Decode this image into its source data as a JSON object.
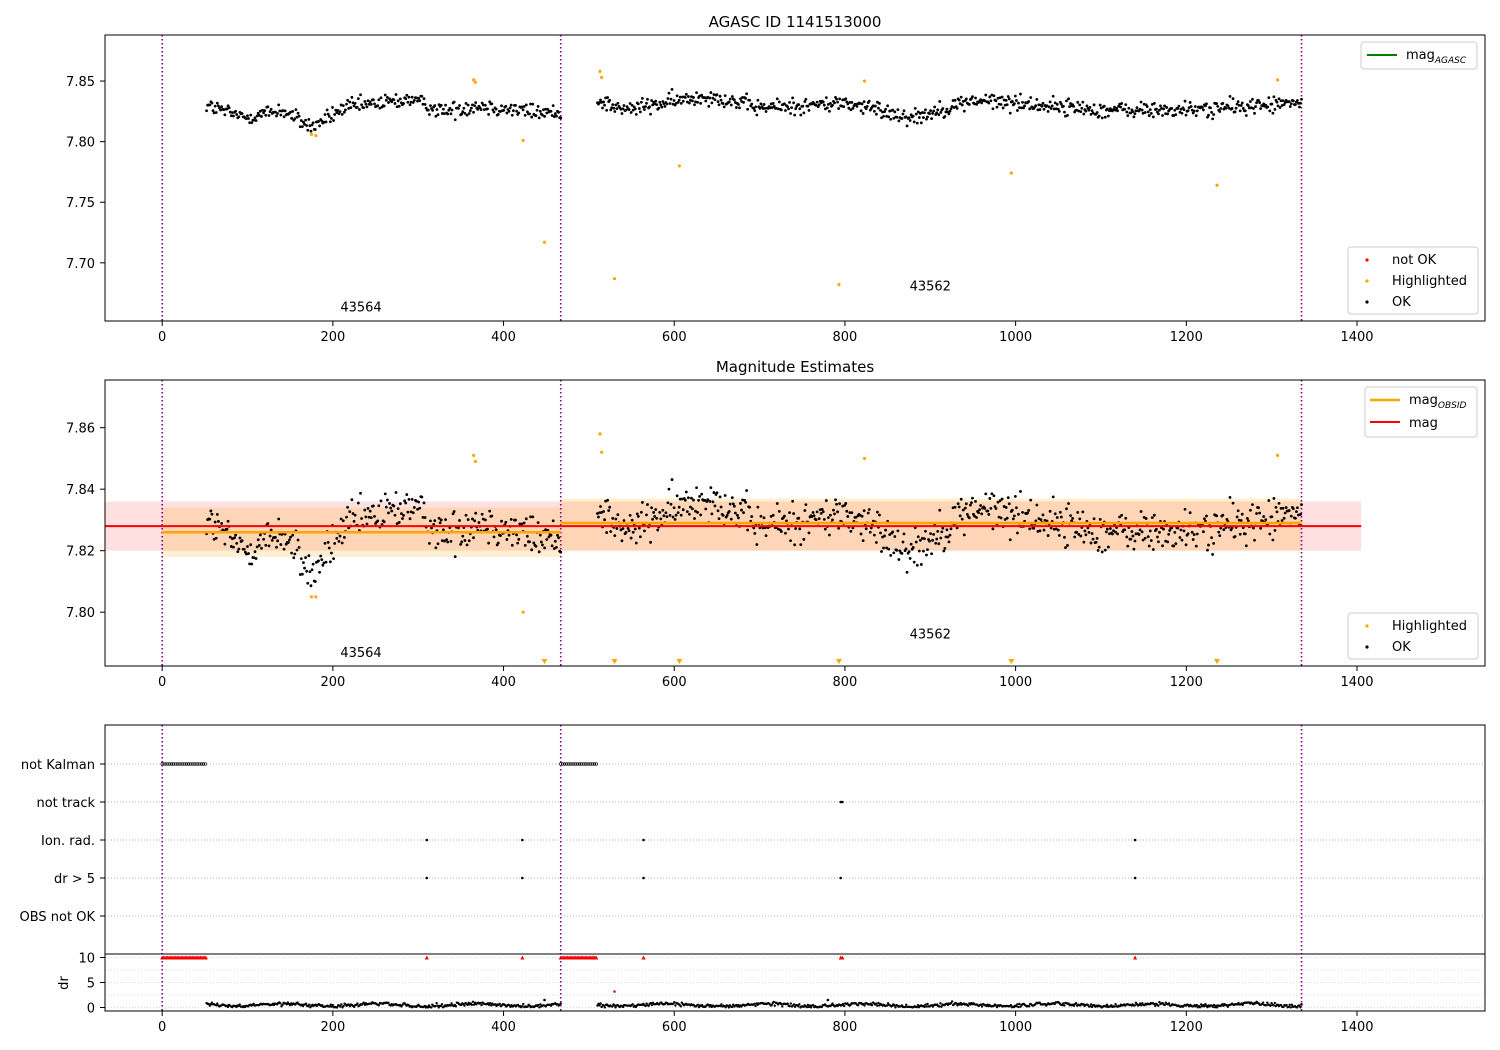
{
  "chart_data": [
    {
      "type": "scatter",
      "title": "AGASC ID 1141513000",
      "xlim": [
        -67,
        1550
      ],
      "ylim": [
        7.652,
        7.888
      ],
      "xticks": [
        "0",
        "200",
        "400",
        "600",
        "800",
        "1000",
        "1200",
        "1400"
      ],
      "yticks": [
        "7.70",
        "7.75",
        "7.80",
        "7.85"
      ],
      "legend_upper": {
        "label": "mag",
        "subscript": "AGASC",
        "color": "#008000"
      },
      "legend_lower": [
        {
          "label": "not OK",
          "color": "#ff0000"
        },
        {
          "label": "Highlighted",
          "color": "#ffa500"
        },
        {
          "label": "OK",
          "color": "#000000"
        }
      ],
      "obsid_labels": [
        {
          "text": "43564",
          "x": 233,
          "y": 7.66
        },
        {
          "text": "43562",
          "x": 900,
          "y": 7.677
        }
      ],
      "obsid_boundaries": [
        0,
        467,
        1335
      ],
      "highlighted": [
        [
          175,
          7.806
        ],
        [
          180,
          7.805
        ],
        [
          365,
          7.851
        ],
        [
          367,
          7.849
        ],
        [
          423,
          7.801
        ],
        [
          448,
          7.717
        ],
        [
          513,
          7.858
        ],
        [
          515,
          7.853
        ],
        [
          530,
          7.687
        ],
        [
          606,
          7.78
        ],
        [
          793,
          7.682
        ],
        [
          823,
          7.85
        ],
        [
          995,
          7.774
        ],
        [
          1236,
          7.764
        ],
        [
          1307,
          7.851
        ]
      ],
      "ok_segments": [
        {
          "x0": 52,
          "x1": 467,
          "n": 330,
          "base": [
            [
              52,
              7.83
            ],
            [
              95,
              7.82
            ],
            [
              140,
              7.826
            ],
            [
              175,
              7.812
            ],
            [
              215,
              7.828
            ],
            [
              290,
              7.835
            ],
            [
              330,
              7.825
            ],
            [
              370,
              7.83
            ],
            [
              430,
              7.825
            ],
            [
              467,
              7.823
            ]
          ],
          "spread": 0.0055
        },
        {
          "x0": 510,
          "x1": 1335,
          "n": 690,
          "base": [
            [
              510,
              7.835
            ],
            [
              540,
              7.826
            ],
            [
              640,
              7.838
            ],
            [
              700,
              7.828
            ],
            [
              760,
              7.83
            ],
            [
              800,
              7.832
            ],
            [
              880,
              7.82
            ],
            [
              950,
              7.834
            ],
            [
              1000,
              7.832
            ],
            [
              1100,
              7.826
            ],
            [
              1200,
              7.826
            ],
            [
              1290,
              7.83
            ],
            [
              1335,
              7.832
            ]
          ],
          "spread": 0.0055
        }
      ]
    },
    {
      "type": "scatter",
      "title": "Magnitude Estimates",
      "xlim": [
        -67,
        1550
      ],
      "ylim": [
        7.7825,
        7.8755
      ],
      "xticks": [
        "0",
        "200",
        "400",
        "600",
        "800",
        "1000",
        "1200",
        "1400"
      ],
      "yticks": [
        "7.80",
        "7.82",
        "7.84",
        "7.86"
      ],
      "legend_upper": [
        {
          "label": "mag",
          "subscript": "OBSID",
          "color": "#ffa500"
        },
        {
          "label": "mag",
          "subscript": "",
          "color": "#ff0000"
        }
      ],
      "legend_lower": [
        {
          "label": "Highlighted",
          "color": "#ffa500"
        },
        {
          "label": "OK",
          "color": "#000000"
        }
      ],
      "obsid_labels": [
        {
          "text": "43564",
          "x": 233,
          "y": 7.7855
        },
        {
          "text": "43562",
          "x": 900,
          "y": 7.7915
        }
      ],
      "obsid_boundaries": [
        0,
        467,
        1335
      ],
      "mag": 7.828,
      "mag_band": [
        7.82,
        7.836
      ],
      "mag_line_extent": [
        -67,
        1405
      ],
      "obsid_mags": [
        {
          "x0": 0,
          "x1": 467,
          "mag": 7.826,
          "band": [
            7.818,
            7.834
          ]
        },
        {
          "x0": 467,
          "x1": 1335,
          "mag": 7.829,
          "band": [
            7.82,
            7.837
          ]
        }
      ],
      "highlighted": [
        [
          175,
          7.805
        ],
        [
          180,
          7.805
        ],
        [
          365,
          7.851
        ],
        [
          367,
          7.849
        ],
        [
          423,
          7.8
        ],
        [
          513,
          7.858
        ],
        [
          515,
          7.852
        ],
        [
          823,
          7.85
        ],
        [
          1307,
          7.851
        ]
      ],
      "offscale_markers": [
        448,
        530,
        606,
        793,
        995,
        1236
      ],
      "ok_segments": [
        {
          "x0": 52,
          "x1": 467,
          "n": 330,
          "base": [
            [
              52,
              7.83
            ],
            [
              95,
              7.82
            ],
            [
              140,
              7.826
            ],
            [
              175,
              7.812
            ],
            [
              215,
              7.828
            ],
            [
              290,
              7.835
            ],
            [
              330,
              7.825
            ],
            [
              370,
              7.83
            ],
            [
              430,
              7.825
            ],
            [
              467,
              7.823
            ]
          ],
          "spread": 0.0055
        },
        {
          "x0": 510,
          "x1": 1335,
          "n": 690,
          "base": [
            [
              510,
              7.835
            ],
            [
              540,
              7.826
            ],
            [
              640,
              7.838
            ],
            [
              700,
              7.828
            ],
            [
              760,
              7.83
            ],
            [
              800,
              7.832
            ],
            [
              880,
              7.82
            ],
            [
              950,
              7.834
            ],
            [
              1000,
              7.832
            ],
            [
              1100,
              7.826
            ],
            [
              1200,
              7.826
            ],
            [
              1290,
              7.83
            ],
            [
              1335,
              7.832
            ]
          ],
          "spread": 0.0055
        }
      ]
    },
    {
      "type": "scatter",
      "title": "",
      "xlim": [
        -67,
        1550
      ],
      "xticks": [
        "0",
        "200",
        "400",
        "600",
        "800",
        "1000",
        "1200",
        "1400"
      ],
      "flag_categories": [
        "not Kalman",
        "not track",
        "Ion. rad.",
        "dr > 5",
        "OBS not OK"
      ],
      "flags": {
        "not Kalman": {
          "ranges": [
            [
              0,
              52
            ],
            [
              467,
              510
            ]
          ]
        },
        "not track": {
          "points": [
            795,
            797
          ]
        },
        "Ion. rad.": {
          "points": [
            310,
            422,
            564,
            1140
          ]
        },
        "dr > 5": {
          "points": [
            310,
            422,
            564,
            795,
            1140
          ]
        },
        "OBS not OK": {
          "points": []
        }
      },
      "obsid_boundaries": [
        0,
        467,
        1335
      ],
      "dr": {
        "ylabel": "dr",
        "yticks": [
          "0",
          "5",
          "10"
        ],
        "ylim": [
          -0.7,
          10.7
        ],
        "capped_value": 10,
        "capped_ranges": [
          [
            0,
            52
          ],
          [
            467,
            510
          ]
        ],
        "capped_points": [
          310,
          422,
          564,
          795,
          797,
          1140
        ],
        "outliers": [
          [
            530,
            3.2
          ],
          [
            448,
            1.5
          ],
          [
            780,
            1.5
          ]
        ],
        "segments": [
          [
            52,
            467
          ],
          [
            510,
            1335
          ]
        ]
      }
    }
  ]
}
